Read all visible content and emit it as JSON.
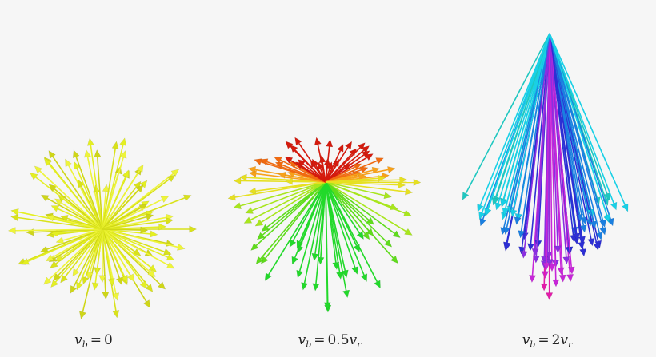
{
  "panels": [
    {
      "id": "rest",
      "caption": {
        "var": "v",
        "sub": "b",
        "eq": "=",
        "value": "0",
        "unit": "",
        "unit_sub": ""
      },
      "colors": [
        "#d9e21a",
        "#e4ef22",
        "#cfd617",
        "#eef43a"
      ]
    },
    {
      "id": "half",
      "caption": {
        "var": "v",
        "sub": "b",
        "eq": "=",
        "value": "0.5",
        "unit": "v",
        "unit_sub": "r"
      },
      "colors": [
        "#d41a0d",
        "#f06a10",
        "#f7a11a",
        "#e6e020",
        "#a8e61d",
        "#5fdc1c",
        "#22d92a"
      ]
    },
    {
      "id": "double",
      "caption": {
        "var": "v",
        "sub": "b",
        "eq": "=",
        "value": "2",
        "unit": "v",
        "unit_sub": "r"
      },
      "colors": [
        "#1ec7c0",
        "#18d0e6",
        "#1a7fe0",
        "#2d2fd4",
        "#8a2fe0",
        "#c726d8",
        "#e21ca8",
        "#f0106a"
      ]
    }
  ]
}
